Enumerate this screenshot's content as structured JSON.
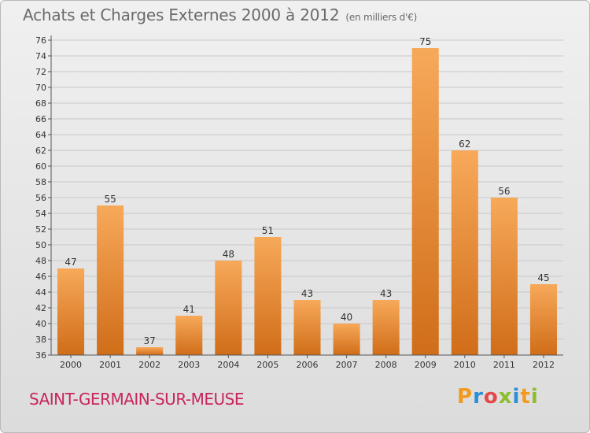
{
  "header": {
    "title": "Achats et Charges Externes 2000 à 2012",
    "unit": "(en milliers d'€)"
  },
  "footer": {
    "town": "SAINT-GERMAIN-SUR-MEUSE",
    "logo": [
      "P",
      "r",
      "o",
      "x",
      "i",
      "t",
      "i"
    ]
  },
  "colors": {
    "bar_light": "#f7a95a",
    "bar_dark": "#d06d18",
    "grid": "#c8c8c8",
    "town": "#c8265a"
  },
  "chart_data": {
    "type": "bar",
    "title": "Achats et Charges Externes 2000 à 2012",
    "subtitle": "(en milliers d'€)",
    "categories": [
      "2000",
      "2001",
      "2002",
      "2003",
      "2004",
      "2005",
      "2006",
      "2007",
      "2008",
      "2009",
      "2010",
      "2011",
      "2012"
    ],
    "values": [
      47,
      55,
      37,
      41,
      48,
      51,
      43,
      40,
      43,
      75,
      62,
      56,
      45
    ],
    "ylim": [
      36,
      76
    ],
    "ytick_step": 2,
    "grid": true,
    "xlabel": "",
    "ylabel": ""
  }
}
